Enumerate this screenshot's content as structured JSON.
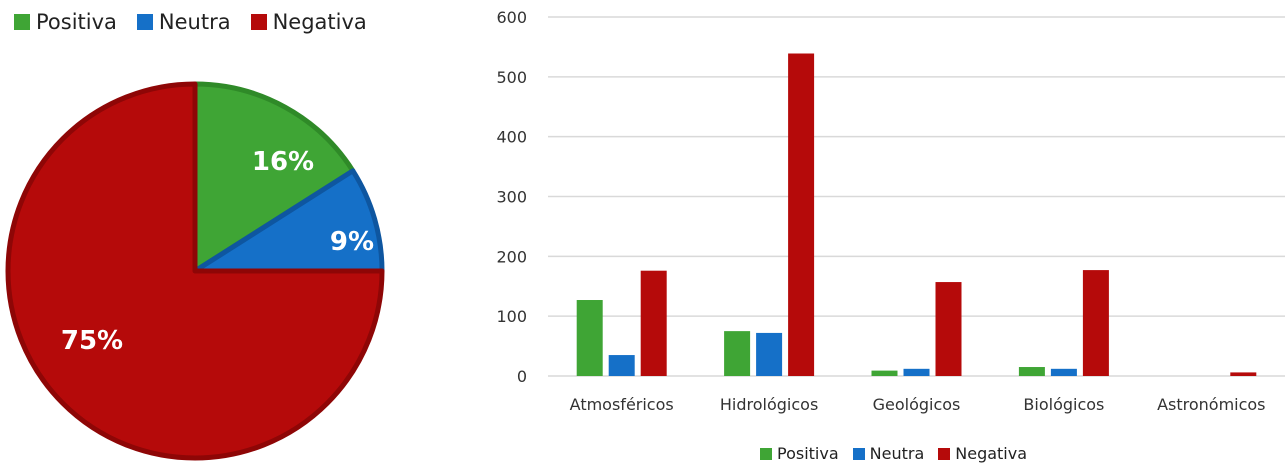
{
  "colors": {
    "positiva": "#3fa535",
    "neutra": "#1570c8",
    "negativa": "#b50a0a"
  },
  "chart_data": [
    {
      "type": "pie",
      "labels": [
        "Positiva",
        "Neutra",
        "Negativa"
      ],
      "values": [
        16,
        9,
        75
      ],
      "data_labels": [
        "16%",
        "9%",
        "75%"
      ],
      "legend_position": "top-left"
    },
    {
      "type": "bar",
      "categories": [
        "Atmosféricos",
        "Hidrológicos",
        "Geológicos",
        "Biológicos",
        "Astronómicos"
      ],
      "series": [
        {
          "name": "Positiva",
          "values": [
            127,
            75,
            9,
            15,
            0
          ]
        },
        {
          "name": "Neutra",
          "values": [
            35,
            72,
            12,
            12,
            0
          ]
        },
        {
          "name": "Negativa",
          "values": [
            176,
            539,
            157,
            177,
            6
          ]
        }
      ],
      "ylim": [
        0,
        600
      ],
      "yticks": [
        "0",
        "100",
        "200",
        "300",
        "400",
        "500",
        "600"
      ],
      "grid": true,
      "legend_position": "bottom"
    }
  ]
}
